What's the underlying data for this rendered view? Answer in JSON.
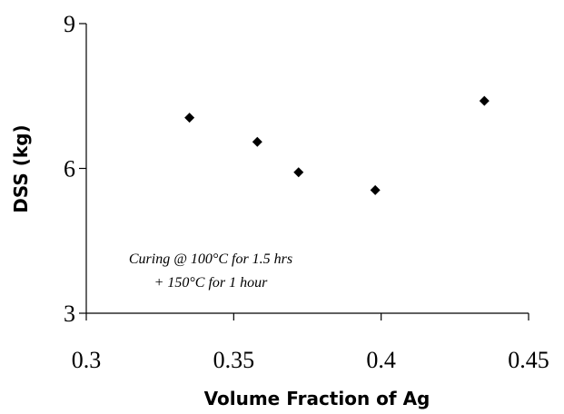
{
  "chart_data": {
    "type": "scatter",
    "title": "",
    "xlabel": "Volume Fraction of Ag",
    "ylabel": "DSS (kg)",
    "xlim": [
      0.3,
      0.45
    ],
    "ylim": [
      3,
      9
    ],
    "x_ticks": [
      "0.3",
      "0.35",
      "0.4",
      "0.45"
    ],
    "y_ticks": [
      "3",
      "6",
      "9"
    ],
    "x_tick_values": [
      0.3,
      0.35,
      0.4,
      0.45
    ],
    "y_tick_values": [
      3,
      6,
      9
    ],
    "grid": false,
    "marker": "diamond",
    "series": [
      {
        "points": [
          {
            "x": 0.335,
            "y": 7.05
          },
          {
            "x": 0.358,
            "y": 6.55
          },
          {
            "x": 0.372,
            "y": 5.92
          },
          {
            "x": 0.398,
            "y": 5.55
          },
          {
            "x": 0.435,
            "y": 7.4
          }
        ]
      }
    ],
    "annotation": {
      "line1": "Curing @ 100°C for 1.5 hrs",
      "line2": "+ 150°C for 1 hour"
    }
  }
}
